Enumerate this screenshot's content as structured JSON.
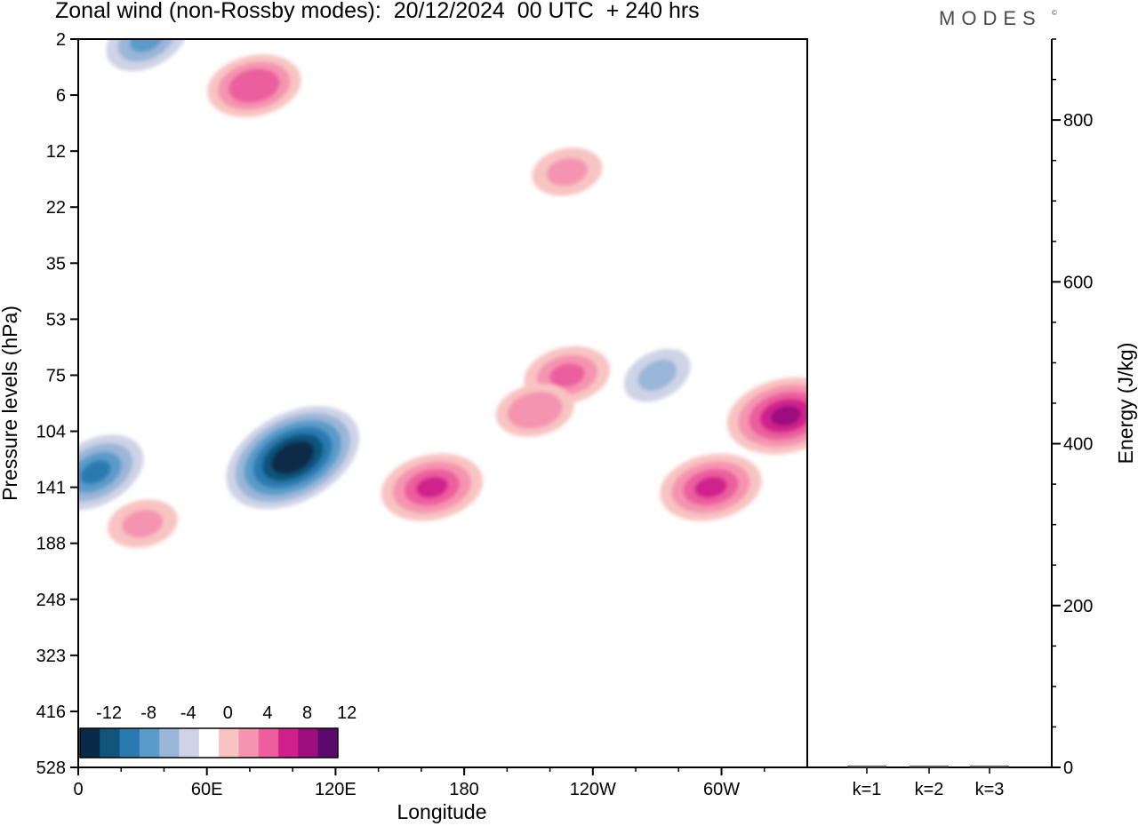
{
  "header": {
    "title": "Zonal wind (non-Rossby modes):  20/12/2024  00 UTC  + 240 hrs",
    "logo": "MODES",
    "logo_mark": "©"
  },
  "chart_data": [
    {
      "type": "heatmap",
      "title": "Zonal wind (non-Rossby modes):  20/12/2024  00 UTC  + 240 hrs",
      "xlabel": "Longitude",
      "ylabel": "Pressure levels (hPa)",
      "x_ticks": [
        "0",
        "60E",
        "120E",
        "180",
        "120W",
        "60W"
      ],
      "x_tick_values": [
        0,
        60,
        120,
        180,
        240,
        300
      ],
      "xlim": [
        0,
        340
      ],
      "y_ticks": [
        "2",
        "6",
        "12",
        "22",
        "35",
        "53",
        "75",
        "104",
        "141",
        "188",
        "248",
        "323",
        "416",
        "528"
      ],
      "y_scale": "pressure levels (top = 2 hPa, bottom = 528 hPa)",
      "colorbar": {
        "labels": [
          "-12",
          "-8",
          "-4",
          "0",
          "4",
          "8",
          "12"
        ],
        "levels": [
          -14,
          -12,
          -10,
          -8,
          -6,
          -4,
          -2,
          2,
          4,
          6,
          8,
          10,
          12,
          14
        ],
        "colors": [
          "#0a2a4a",
          "#11557d",
          "#2a7ab0",
          "#5a9bc9",
          "#9ab6d8",
          "#cfd3e6",
          "#ffffff",
          "#f8c4c2",
          "#f594b0",
          "#ec5e9e",
          "#d0208c",
          "#9c0e7e",
          "#5a0a6e"
        ]
      },
      "features": [
        {
          "sign": "negative",
          "peak_value": -13,
          "lon": 100,
          "level_hpa": 120
        },
        {
          "sign": "negative",
          "peak_value": -8,
          "lon": 8,
          "level_hpa": 130
        },
        {
          "sign": "negative",
          "peak_value": -6,
          "lon": 32,
          "level_hpa": 2
        },
        {
          "sign": "negative",
          "peak_value": -4,
          "lon": 270,
          "level_hpa": 75
        },
        {
          "sign": "positive",
          "peak_value": 10,
          "lon": 330,
          "level_hpa": 95
        },
        {
          "sign": "positive",
          "peak_value": 8,
          "lon": 165,
          "level_hpa": 141
        },
        {
          "sign": "positive",
          "peak_value": 8,
          "lon": 295,
          "level_hpa": 141
        },
        {
          "sign": "positive",
          "peak_value": 7,
          "lon": 82,
          "level_hpa": 5
        },
        {
          "sign": "positive",
          "peak_value": 6,
          "lon": 228,
          "level_hpa": 75
        },
        {
          "sign": "positive",
          "peak_value": 5,
          "lon": 213,
          "level_hpa": 92
        },
        {
          "sign": "positive",
          "peak_value": 4,
          "lon": 228,
          "level_hpa": 15
        },
        {
          "sign": "positive",
          "peak_value": 4,
          "lon": 30,
          "level_hpa": 170
        }
      ]
    },
    {
      "type": "bar",
      "categories": [
        "k=1",
        "k=2",
        "k=3"
      ],
      "values": [
        0,
        0,
        0
      ],
      "ylabel": "Energy (J/kg)",
      "y_ticks": [
        "0",
        "200",
        "400",
        "600",
        "800"
      ],
      "ylim": [
        0,
        900
      ]
    }
  ]
}
